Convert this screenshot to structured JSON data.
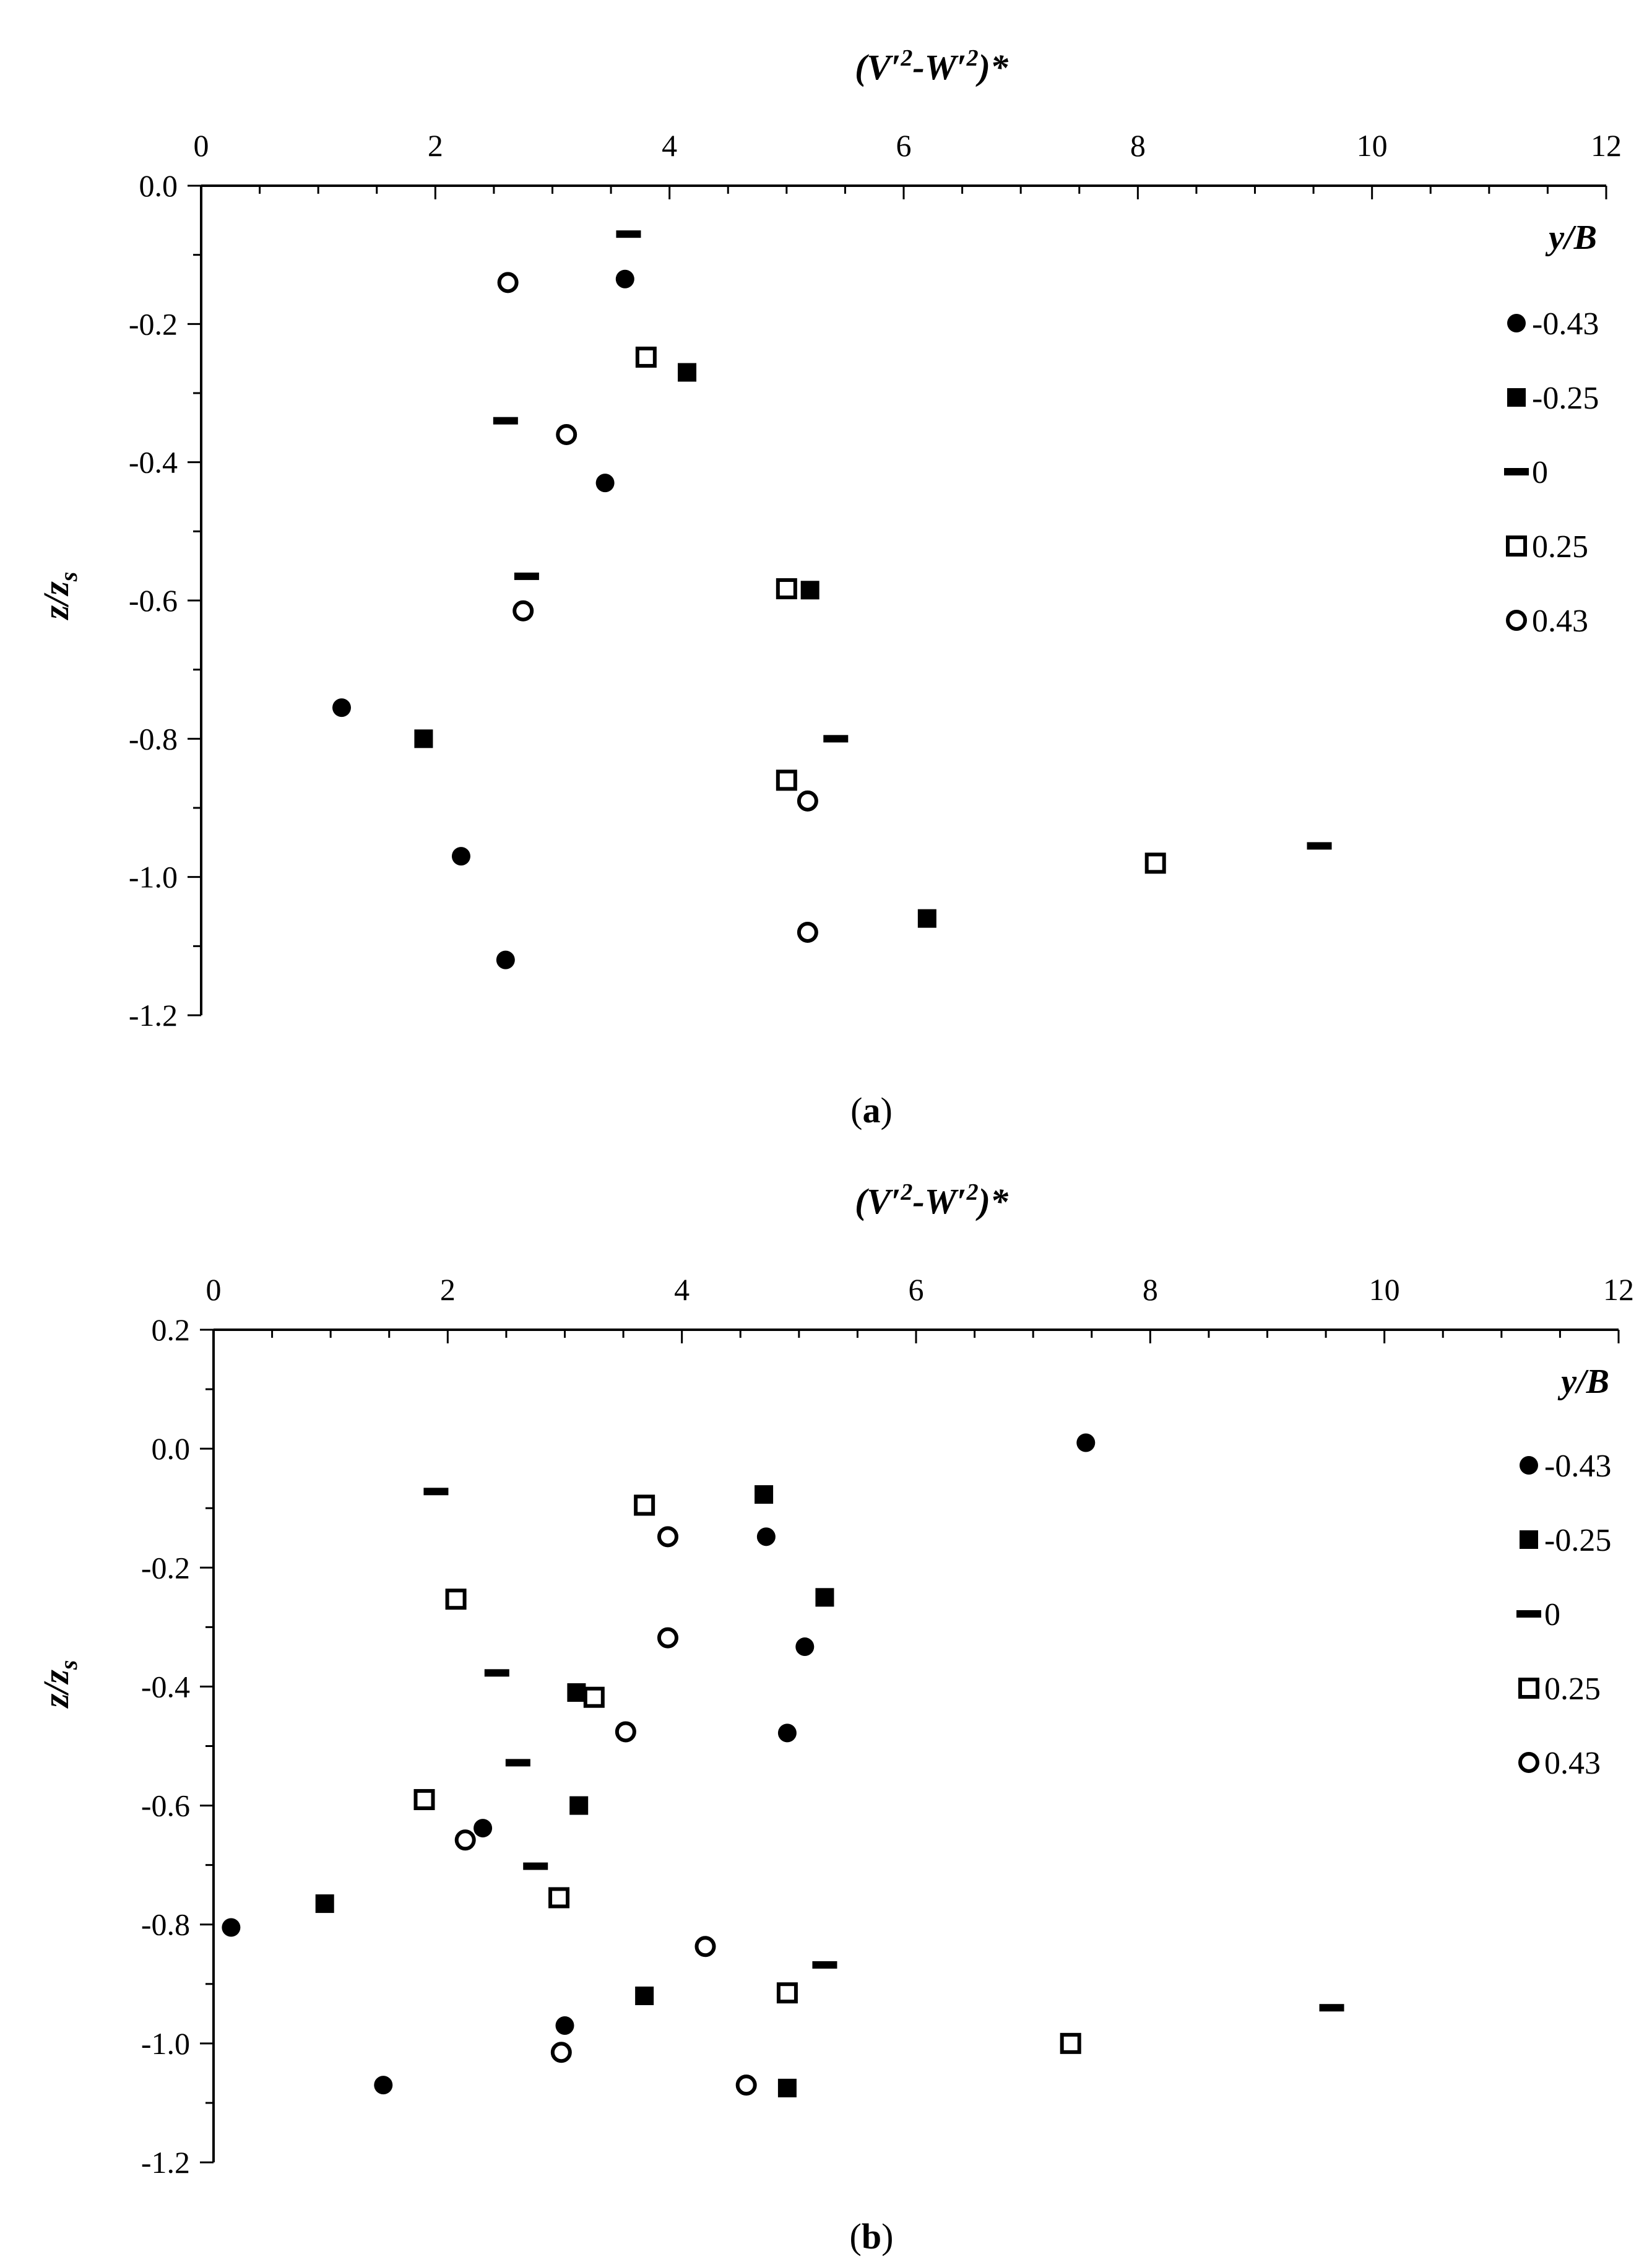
{
  "chart_data": [
    {
      "type": "scatter",
      "caption": "a",
      "x_axis": {
        "position": "top",
        "xlim": [
          0,
          12
        ],
        "major_ticks": [
          0,
          2,
          4,
          6,
          8,
          10,
          12
        ],
        "tick_labels": [
          "0",
          "2",
          "4",
          "6",
          "8",
          "10",
          "12"
        ],
        "minor_step": 0.5
      },
      "y_axis": {
        "ylim": [
          -1.2,
          0.0
        ],
        "major_ticks": [
          0.0,
          -0.2,
          -0.4,
          -0.6,
          -0.8,
          -1.0,
          -1.2
        ],
        "tick_labels": [
          "0.0",
          "-0.2",
          "-0.4",
          "-0.6",
          "-0.8",
          "-1.0",
          "-1.2"
        ],
        "minor_step": 0.1
      },
      "grid": false,
      "legend": {
        "title": "y/B",
        "placement": "right"
      },
      "series": [
        {
          "name": "-0.43",
          "marker": "filled-circle",
          "points": [
            [
              3.62,
              -0.135
            ],
            [
              3.45,
              -0.43
            ],
            [
              1.2,
              -0.755
            ],
            [
              2.22,
              -0.97
            ],
            [
              2.6,
              -1.12
            ]
          ]
        },
        {
          "name": "-0.25",
          "marker": "filled-square",
          "points": [
            [
              4.15,
              -0.27
            ],
            [
              5.2,
              -0.585
            ],
            [
              1.9,
              -0.8
            ],
            [
              6.2,
              -1.06
            ]
          ]
        },
        {
          "name": "0",
          "marker": "dash",
          "points": [
            [
              3.65,
              -0.07
            ],
            [
              2.6,
              -0.34
            ],
            [
              2.78,
              -0.565
            ],
            [
              5.42,
              -0.8
            ],
            [
              9.55,
              -0.955
            ]
          ]
        },
        {
          "name": "0.25",
          "marker": "open-square",
          "points": [
            [
              3.8,
              -0.248
            ],
            [
              5.0,
              -0.583
            ],
            [
              5.0,
              -0.86
            ],
            [
              8.15,
              -0.98
            ]
          ]
        },
        {
          "name": "0.43",
          "marker": "open-circle",
          "points": [
            [
              2.62,
              -0.14
            ],
            [
              3.12,
              -0.36
            ],
            [
              2.75,
              -0.615
            ],
            [
              5.18,
              -0.89
            ],
            [
              5.18,
              -1.08
            ]
          ]
        }
      ]
    },
    {
      "type": "scatter",
      "caption": "b",
      "x_axis": {
        "position": "top",
        "xlim": [
          0,
          12
        ],
        "major_ticks": [
          0,
          2,
          4,
          6,
          8,
          10,
          12
        ],
        "tick_labels": [
          "0",
          "2",
          "4",
          "6",
          "8",
          "10",
          "12"
        ],
        "minor_step": 0.5
      },
      "y_axis": {
        "ylim": [
          -1.2,
          0.2
        ],
        "major_ticks": [
          0.2,
          0.0,
          -0.2,
          -0.4,
          -0.6,
          -0.8,
          -1.0,
          -1.2
        ],
        "tick_labels": [
          "0.2",
          "0.0",
          "-0.2",
          "-0.4",
          "-0.6",
          "-0.8",
          "-1.0",
          "-1.2"
        ],
        "minor_step": 0.1
      },
      "grid": false,
      "legend": {
        "title": "y/B",
        "placement": "right"
      },
      "series": [
        {
          "name": "-0.43",
          "marker": "filled-circle",
          "points": [
            [
              7.45,
              0.01
            ],
            [
              4.72,
              -0.148
            ],
            [
              5.05,
              -0.333
            ],
            [
              4.9,
              -0.478
            ],
            [
              2.3,
              -0.638
            ],
            [
              0.15,
              -0.805
            ],
            [
              3.0,
              -0.97
            ],
            [
              1.45,
              -1.07
            ]
          ]
        },
        {
          "name": "-0.25",
          "marker": "filled-square",
          "points": [
            [
              4.7,
              -0.077
            ],
            [
              5.22,
              -0.25
            ],
            [
              3.1,
              -0.41
            ],
            [
              3.12,
              -0.6
            ],
            [
              0.95,
              -0.765
            ],
            [
              3.68,
              -0.92
            ],
            [
              4.9,
              -1.075
            ]
          ]
        },
        {
          "name": "0",
          "marker": "dash",
          "points": [
            [
              1.9,
              -0.072
            ],
            [
              2.42,
              -0.377
            ],
            [
              2.6,
              -0.528
            ],
            [
              2.75,
              -0.702
            ],
            [
              5.22,
              -0.868
            ],
            [
              9.55,
              -0.94
            ]
          ]
        },
        {
          "name": "0.25",
          "marker": "open-square",
          "points": [
            [
              3.68,
              -0.095
            ],
            [
              2.07,
              -0.253
            ],
            [
              3.25,
              -0.418
            ],
            [
              1.8,
              -0.59
            ],
            [
              2.95,
              -0.755
            ],
            [
              4.9,
              -0.915
            ],
            [
              7.32,
              -1.0
            ]
          ]
        },
        {
          "name": "0.43",
          "marker": "open-circle",
          "points": [
            [
              3.88,
              -0.148
            ],
            [
              3.88,
              -0.318
            ],
            [
              3.52,
              -0.476
            ],
            [
              2.15,
              -0.658
            ],
            [
              4.2,
              -0.837
            ],
            [
              2.97,
              -1.015
            ],
            [
              4.55,
              -1.07
            ]
          ]
        }
      ]
    }
  ]
}
